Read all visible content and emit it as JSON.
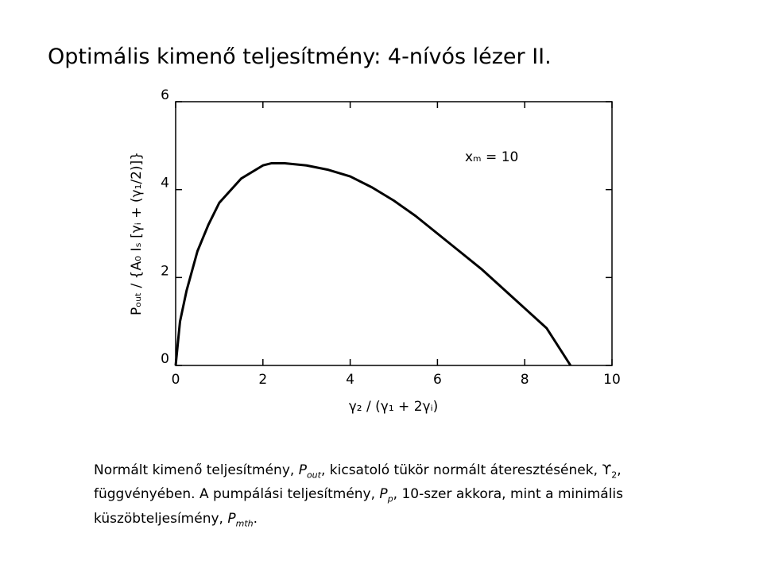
{
  "title": "Optimális kimenő teljesítmény: 4-nívós lézer II.",
  "chart_data": {
    "type": "line",
    "x": [
      0,
      0.1,
      0.25,
      0.5,
      0.75,
      1,
      1.5,
      2,
      2.2,
      2.5,
      3,
      3.5,
      4,
      4.5,
      5,
      5.5,
      6,
      6.5,
      7,
      7.5,
      8,
      8.5,
      9.05
    ],
    "values": [
      0,
      1.0,
      1.7,
      2.6,
      3.2,
      3.7,
      4.25,
      4.55,
      4.6,
      4.6,
      4.55,
      4.45,
      4.3,
      4.05,
      3.75,
      3.4,
      3.0,
      2.6,
      2.2,
      1.75,
      1.3,
      0.85,
      0
    ],
    "color": "#000000",
    "xlim": [
      0,
      10
    ],
    "ylim": [
      0,
      6
    ],
    "xticks": [
      0,
      2,
      4,
      6,
      8,
      10
    ],
    "yticks": [
      0,
      2,
      4,
      6
    ],
    "xlabel": "γ₂ / (γ₁ + 2γᵢ)",
    "ylabel": "Pₒᵤₜ / {A₀ Iₛ [γᵢ + (γ₁/2)]}",
    "annotation": "xₘ = 10"
  },
  "caption": [
    "Normált kimenő teljesítmény, ",
    "P",
    "out",
    ", kicsatoló tükör normált áteresztésének, ϒ",
    "2",
    ", függvényében. A pumpálási teljesítmény, ",
    "P",
    "p",
    ", 10-szer akkora, mint a minimális küszöbteljesímény, ",
    "P",
    "mth",
    "."
  ]
}
